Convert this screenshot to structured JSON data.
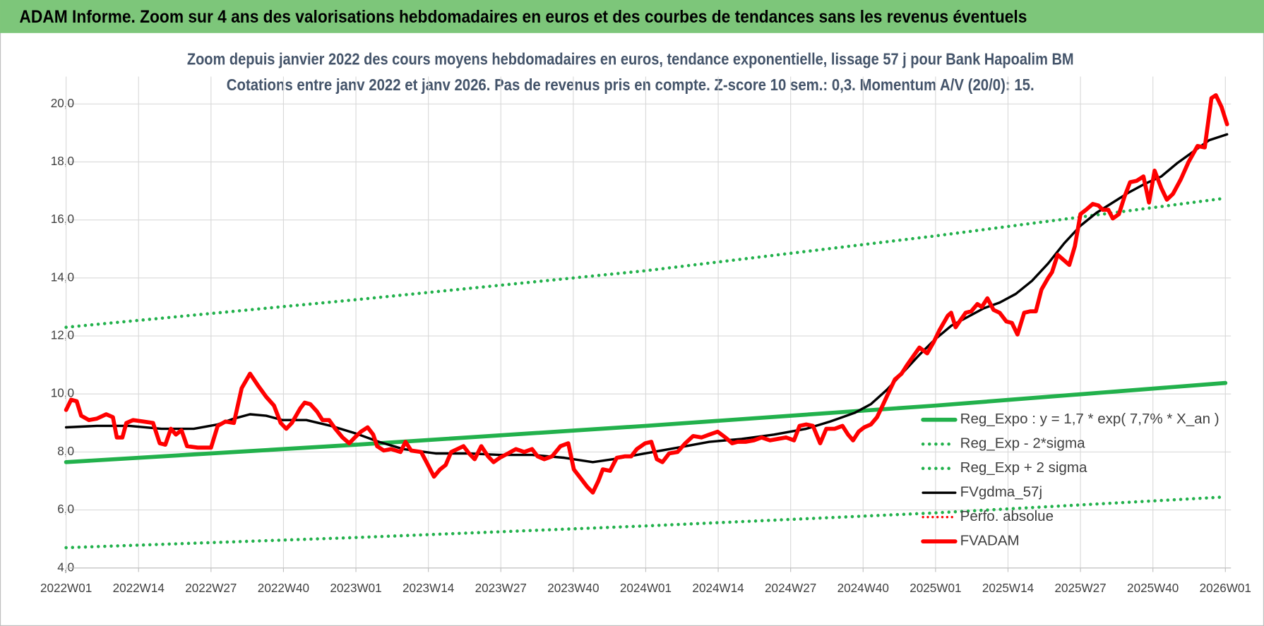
{
  "header": {
    "title": "ADAM Informe. Zoom sur 4 ans des valorisations hebdomadaires en euros et des courbes de tendances sans les revenus éventuels"
  },
  "chart_data": {
    "type": "line",
    "title": "Zoom depuis janvier 2022 des cours moyens hebdomadaires en euros, tendance exponentielle, lissage 57 j pour Bank Hapoalim BM",
    "subtitle": "Cotations entre janv 2022 et janv 2026. Pas de revenus pris en compte. Z-score 10 sem.: 0,3. Momentum A/V (20/0): 15.",
    "xlim": [
      0,
      209
    ],
    "xticks": [
      {
        "value": 0,
        "label": "2022W01"
      },
      {
        "value": 13,
        "label": "2022W14"
      },
      {
        "value": 26,
        "label": "2022W27"
      },
      {
        "value": 39,
        "label": "2022W40"
      },
      {
        "value": 52,
        "label": "2023W01"
      },
      {
        "value": 65,
        "label": "2023W14"
      },
      {
        "value": 78,
        "label": "2023W27"
      },
      {
        "value": 91,
        "label": "2023W40"
      },
      {
        "value": 104,
        "label": "2024W01"
      },
      {
        "value": 117,
        "label": "2024W14"
      },
      {
        "value": 130,
        "label": "2024W27"
      },
      {
        "value": 143,
        "label": "2024W40"
      },
      {
        "value": 156,
        "label": "2025W01"
      },
      {
        "value": 169,
        "label": "2025W14"
      },
      {
        "value": 182,
        "label": "2025W27"
      },
      {
        "value": 195,
        "label": "2025W40"
      },
      {
        "value": 208,
        "label": "2026W01"
      }
    ],
    "ylim": [
      4,
      20
    ],
    "yticks": [
      {
        "value": 4,
        "label": "4,0"
      },
      {
        "value": 6,
        "label": "6,0"
      },
      {
        "value": 8,
        "label": "8,0"
      },
      {
        "value": 10,
        "label": "10,0"
      },
      {
        "value": 12,
        "label": "12,0"
      },
      {
        "value": 14,
        "label": "14,0"
      },
      {
        "value": 16,
        "label": "16,0"
      },
      {
        "value": 18,
        "label": "18,0"
      },
      {
        "value": 20,
        "label": "20,0"
      }
    ],
    "grid": true,
    "legend": "lower right",
    "series": [
      {
        "name": "Reg_Expo : y = 1,7 * exp( 7,7% *  X_an )",
        "color": "#22b14c",
        "dash": "solid",
        "x": [
          0,
          52,
          104,
          156,
          208
        ],
        "values": [
          7.65,
          8.25,
          8.9,
          9.6,
          10.38
        ]
      },
      {
        "name": "Reg_Exp - 2*sigma",
        "color": "#22b14c",
        "dash": "dotted",
        "x": [
          0,
          52,
          104,
          156,
          208
        ],
        "values": [
          4.7,
          5.05,
          5.45,
          5.9,
          6.45
        ]
      },
      {
        "name": "Reg_Exp + 2 sigma",
        "color": "#22b14c",
        "dash": "dotted",
        "x": [
          0,
          52,
          104,
          156,
          208
        ],
        "values": [
          12.3,
          13.25,
          14.25,
          15.45,
          16.75
        ]
      },
      {
        "name": "FVgdma_57j",
        "color": "#000000",
        "dash": "solid",
        "x": [
          0,
          5.5,
          11.3,
          17.1,
          22.9,
          27.2,
          30.1,
          33.0,
          35.9,
          38.8,
          43.1,
          47.5,
          51.8,
          56.1,
          60.5,
          66.3,
          72.0,
          77.8,
          83.6,
          89.4,
          94.5,
          98.1,
          103.9,
          109.7,
          115.4,
          121.2,
          127.0,
          132.8,
          137.1,
          141.5,
          144.4,
          147.3,
          150.2,
          153.1,
          156.0,
          158.8,
          161.7,
          164.6,
          167.5,
          170.4,
          173.3,
          176.2,
          179.1,
          182.0,
          184.9,
          187.8,
          190.7,
          193.6,
          196.5,
          199.3,
          202.2,
          205.1,
          208.3
        ],
        "values": [
          8.85,
          8.9,
          8.9,
          8.8,
          8.8,
          8.95,
          9.15,
          9.3,
          9.25,
          9.1,
          9.1,
          8.9,
          8.65,
          8.35,
          8.1,
          7.95,
          7.95,
          7.9,
          7.9,
          7.8,
          7.65,
          7.75,
          7.95,
          8.15,
          8.35,
          8.45,
          8.6,
          8.8,
          9.05,
          9.35,
          9.65,
          10.15,
          10.75,
          11.35,
          11.9,
          12.35,
          12.65,
          12.95,
          13.15,
          13.45,
          13.9,
          14.5,
          15.2,
          15.8,
          16.25,
          16.6,
          16.95,
          17.25,
          17.5,
          17.95,
          18.35,
          18.75,
          18.95
        ]
      },
      {
        "name": "Perfo. absolue",
        "color": "#ff0000",
        "dash": "dotted"
      },
      {
        "name": "FVADAM",
        "color": "#ff0000",
        "dash": "solid",
        "x": [
          0,
          0.9,
          1.9,
          2.7,
          4.1,
          5.5,
          7.2,
          8.4,
          9.1,
          10.1,
          10.8,
          12.0,
          13.9,
          15.6,
          16.8,
          17.8,
          18.8,
          19.7,
          20.7,
          21.7,
          23.6,
          26.0,
          27.2,
          28.6,
          30.1,
          31.5,
          33.0,
          34.4,
          35.9,
          37.3,
          38.5,
          39.5,
          40.5,
          42.0,
          42.8,
          43.8,
          45.0,
          46.0,
          47.2,
          48.3,
          49.6,
          50.8,
          51.8,
          52.9,
          54.1,
          55.1,
          55.8,
          57.0,
          58.3,
          60.0,
          60.9,
          61.9,
          63.7,
          64.8,
          66.0,
          67.1,
          68.1,
          69.1,
          70.2,
          71.3,
          72.3,
          73.3,
          74.5,
          75.7,
          76.7,
          77.8,
          79.3,
          80.7,
          82.2,
          83.6,
          84.6,
          85.8,
          87.2,
          88.7,
          90.1,
          91.1,
          92.3,
          93.5,
          94.5,
          95.5,
          96.3,
          97.6,
          98.8,
          100.3,
          101.4,
          102.4,
          103.9,
          105.0,
          106.0,
          107.0,
          108.2,
          109.7,
          111.1,
          112.5,
          114.0,
          115.4,
          116.9,
          118.3,
          119.5,
          120.5,
          121.9,
          123.4,
          124.8,
          126.3,
          127.7,
          129.2,
          130.6,
          131.6,
          132.8,
          134.0,
          135.3,
          136.4,
          137.9,
          139.3,
          140.3,
          141.2,
          142.2,
          143.2,
          144.4,
          145.5,
          146.5,
          147.7,
          148.7,
          149.9,
          150.9,
          152.0,
          153.1,
          154.5,
          155.7,
          156.7,
          158.2,
          158.8,
          159.6,
          160.3,
          161.4,
          162.4,
          163.5,
          164.3,
          165.3,
          166.4,
          167.5,
          168.7,
          169.7,
          170.7,
          171.9,
          173.0,
          174.0,
          175.0,
          176.2,
          176.9,
          177.9,
          179.1,
          180.0,
          181.0,
          182.0,
          183.0,
          184.2,
          185.2,
          186.0,
          187.0,
          187.8,
          188.9,
          189.9,
          190.9,
          192.1,
          193.3,
          194.3,
          195.3,
          196.5,
          197.5,
          198.6,
          200.0,
          201.4,
          203.0,
          204.3,
          205.5,
          206.3,
          207.3,
          208.3
        ],
        "values": [
          9.45,
          9.8,
          9.75,
          9.25,
          9.1,
          9.15,
          9.3,
          9.2,
          8.5,
          8.5,
          9.0,
          9.1,
          9.05,
          9.0,
          8.3,
          8.25,
          8.8,
          8.6,
          8.75,
          8.2,
          8.15,
          8.15,
          8.9,
          9.05,
          9.0,
          10.2,
          10.7,
          10.3,
          9.9,
          9.6,
          9.0,
          8.8,
          9.0,
          9.5,
          9.7,
          9.65,
          9.4,
          9.1,
          9.1,
          8.8,
          8.5,
          8.3,
          8.5,
          8.7,
          8.85,
          8.6,
          8.2,
          8.05,
          8.1,
          8.0,
          8.35,
          8.05,
          8.0,
          7.6,
          7.15,
          7.4,
          7.55,
          8.0,
          8.1,
          8.2,
          7.95,
          7.75,
          8.2,
          7.85,
          7.65,
          7.8,
          7.95,
          8.1,
          8.0,
          8.1,
          7.85,
          7.75,
          7.85,
          8.2,
          8.3,
          7.4,
          7.1,
          6.8,
          6.6,
          7.0,
          7.4,
          7.35,
          7.8,
          7.85,
          7.85,
          8.1,
          8.3,
          8.35,
          7.75,
          7.65,
          7.95,
          8.0,
          8.3,
          8.55,
          8.5,
          8.6,
          8.7,
          8.5,
          8.3,
          8.35,
          8.35,
          8.4,
          8.5,
          8.4,
          8.45,
          8.5,
          8.4,
          8.9,
          8.95,
          8.9,
          8.3,
          8.8,
          8.8,
          8.9,
          8.6,
          8.4,
          8.7,
          8.85,
          8.95,
          9.2,
          9.6,
          10.1,
          10.5,
          10.7,
          11.0,
          11.3,
          11.6,
          11.4,
          11.8,
          12.2,
          12.7,
          12.8,
          12.3,
          12.5,
          12.8,
          12.85,
          13.1,
          13.0,
          13.3,
          12.9,
          12.8,
          12.5,
          12.45,
          12.05,
          12.8,
          12.85,
          12.85,
          13.6,
          14.0,
          14.2,
          14.8,
          14.6,
          14.45,
          15.1,
          16.2,
          16.35,
          16.55,
          16.5,
          16.35,
          16.35,
          16.05,
          16.2,
          16.8,
          17.3,
          17.35,
          17.5,
          16.6,
          17.7,
          17.1,
          16.7,
          16.9,
          17.4,
          18.0,
          18.55,
          18.5,
          20.2,
          20.3,
          19.9,
          19.3
        ]
      }
    ]
  }
}
